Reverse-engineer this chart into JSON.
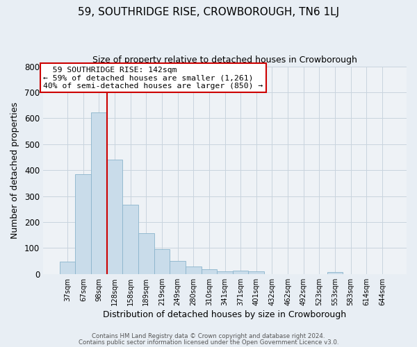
{
  "title": "59, SOUTHRIDGE RISE, CROWBOROUGH, TN6 1LJ",
  "subtitle": "Size of property relative to detached houses in Crowborough",
  "xlabel": "Distribution of detached houses by size in Crowborough",
  "ylabel": "Number of detached properties",
  "bar_labels": [
    "37sqm",
    "67sqm",
    "98sqm",
    "128sqm",
    "158sqm",
    "189sqm",
    "219sqm",
    "249sqm",
    "280sqm",
    "310sqm",
    "341sqm",
    "371sqm",
    "401sqm",
    "432sqm",
    "462sqm",
    "492sqm",
    "523sqm",
    "553sqm",
    "583sqm",
    "614sqm",
    "644sqm"
  ],
  "bar_values": [
    47,
    385,
    622,
    440,
    267,
    157,
    95,
    50,
    30,
    17,
    10,
    12,
    10,
    0,
    0,
    0,
    0,
    8,
    0,
    0,
    0
  ],
  "bar_color": "#c9dcea",
  "bar_edge_color": "#8ab4cc",
  "vline_x_idx": 3,
  "vline_color": "#cc0000",
  "ylim": [
    0,
    800
  ],
  "yticks": [
    0,
    100,
    200,
    300,
    400,
    500,
    600,
    700,
    800
  ],
  "annotation_title": "59 SOUTHRIDGE RISE: 142sqm",
  "annotation_line1": "← 59% of detached houses are smaller (1,261)",
  "annotation_line2": "40% of semi-detached houses are larger (850) →",
  "annotation_box_color": "#cc0000",
  "footer1": "Contains HM Land Registry data © Crown copyright and database right 2024.",
  "footer2": "Contains public sector information licensed under the Open Government Licence v3.0.",
  "bg_color": "#e8eef4",
  "plot_bg_color": "#eef2f6",
  "grid_color": "#c8d4de"
}
